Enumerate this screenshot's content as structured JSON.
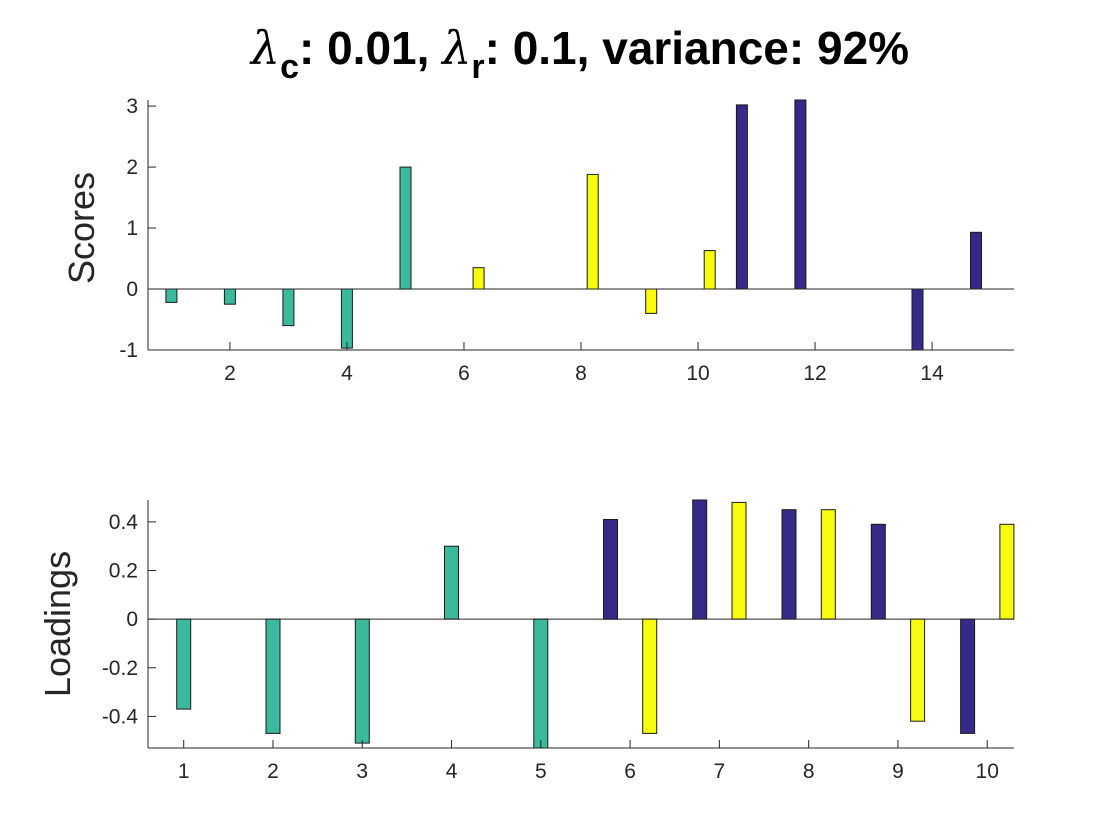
{
  "title": {
    "lambda_symbol": "λ",
    "sub_c": "c",
    "part1": ": 0.01, ",
    "sub_r": "r",
    "part2": ": 0.1, variance: 92%"
  },
  "colors": {
    "teal": "#3bb99c",
    "yellow": "#f9fb0e",
    "navy": "#352a87"
  },
  "chart_data": [
    {
      "type": "bar",
      "ylabel": "Scores",
      "xlim": [
        0.6,
        15.4
      ],
      "ylim": [
        -1,
        3.1
      ],
      "xticks": [
        2,
        4,
        6,
        8,
        10,
        12,
        14
      ],
      "yticks": [
        -1,
        0,
        1,
        2,
        3
      ],
      "series": [
        {
          "color": "teal",
          "points": [
            [
              1,
              -0.22
            ],
            [
              2,
              -0.25
            ],
            [
              3,
              -0.6
            ],
            [
              4,
              -0.97
            ],
            [
              5,
              2.0
            ]
          ]
        },
        {
          "color": "yellow",
          "points": [
            [
              6.25,
              0.35
            ],
            [
              8.2,
              1.88
            ],
            [
              9.2,
              -0.4
            ],
            [
              10.2,
              0.63
            ]
          ]
        },
        {
          "color": "navy",
          "points": [
            [
              10.75,
              3.02
            ],
            [
              11.75,
              3.1
            ],
            [
              13.75,
              -1.0
            ],
            [
              14.75,
              0.93
            ]
          ]
        }
      ]
    },
    {
      "type": "bar",
      "ylabel": "Loadings",
      "xlim": [
        0.6,
        10.3
      ],
      "ylim": [
        -0.53,
        0.49
      ],
      "xticks": [
        1,
        2,
        3,
        4,
        5,
        6,
        7,
        8,
        9,
        10
      ],
      "yticks": [
        -0.4,
        -0.2,
        0,
        0.2,
        0.4
      ],
      "ytick_labels": [
        "-0.4",
        "-0.2",
        "0",
        "0.2",
        "0.4"
      ],
      "series": [
        {
          "color": "teal",
          "points": [
            [
              1,
              -0.37
            ],
            [
              2,
              -0.47
            ],
            [
              3,
              -0.51
            ],
            [
              4,
              0.3
            ],
            [
              5,
              -0.53
            ]
          ]
        },
        {
          "color": "yellow",
          "points": [
            [
              6.22,
              -0.47
            ],
            [
              7.22,
              0.48
            ],
            [
              8.22,
              0.45
            ],
            [
              9.22,
              -0.42
            ],
            [
              10.22,
              0.39
            ]
          ]
        },
        {
          "color": "navy",
          "points": [
            [
              5.78,
              0.41
            ],
            [
              6.78,
              0.49
            ],
            [
              7.78,
              0.45
            ],
            [
              8.78,
              0.39
            ],
            [
              9.78,
              -0.47
            ]
          ]
        }
      ]
    }
  ]
}
